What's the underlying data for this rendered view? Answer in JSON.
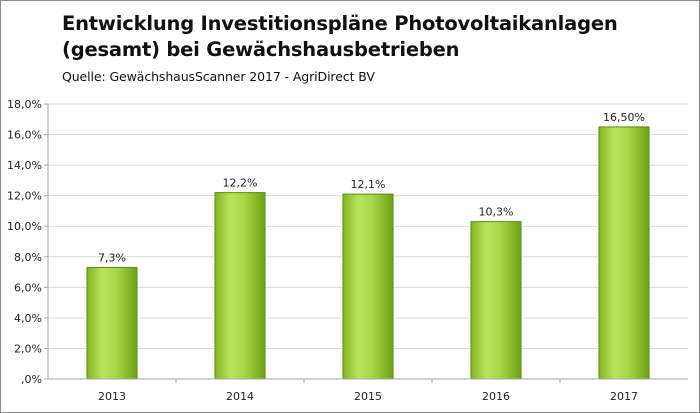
{
  "header": {
    "title_line1": "Entwicklung Investitionspläne Photovoltaikanlagen",
    "title_line2": "(gesamt) bei Gewächshausbetrieben",
    "source": "Quelle: GewächshausScanner 2017 - AgriDirect BV"
  },
  "chart_data": {
    "type": "bar",
    "title": "Entwicklung Investitionspläne Photovoltaikanlagen (gesamt) bei Gewächshausbetrieben",
    "subtitle": "Quelle: GewächshausScanner 2017 - AgriDirect BV",
    "categories": [
      "2013",
      "2014",
      "2015",
      "2016",
      "2017"
    ],
    "values": [
      7.3,
      12.2,
      12.1,
      10.3,
      16.5
    ],
    "data_labels": [
      "7,3%",
      "12,2%",
      "12,1%",
      "10,3%",
      "16,50%"
    ],
    "ylim": [
      0,
      18
    ],
    "yticks": [
      ",0%",
      "2,0%",
      "4,0%",
      "6,0%",
      "8,0%",
      "10,0%",
      "12,0%",
      "14,0%",
      "16,0%",
      "18,0%"
    ],
    "grid": true,
    "legend": "none",
    "colors": {
      "bar_light": "#b5e05a",
      "bar_dark": "#6aa212",
      "bar_edge": "#5a8c10",
      "grid": "#d9d9d9",
      "axis": "#a6a6a6"
    }
  }
}
